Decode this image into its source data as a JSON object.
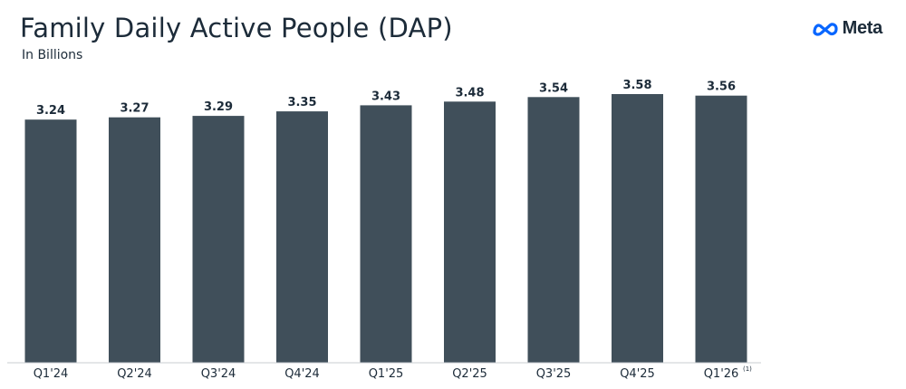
{
  "header": {
    "title": "Family Daily Active People (DAP)",
    "subtitle": "In Billions",
    "brand": "Meta",
    "brand_icon": "meta-infinity-logo-icon",
    "brand_color": "#0866ff"
  },
  "chart_data": {
    "type": "bar",
    "title": "Family Daily Active People (DAP)",
    "subtitle": "In Billions",
    "xlabel": "",
    "ylabel": "",
    "categories": [
      "Q1'24",
      "Q2'24",
      "Q3'24",
      "Q4'24",
      "Q1'25",
      "Q2'25",
      "Q3'25",
      "Q4'25",
      "Q1'26"
    ],
    "values": [
      3.24,
      3.27,
      3.29,
      3.35,
      3.43,
      3.48,
      3.54,
      3.58,
      3.56
    ],
    "value_labels": [
      "3.24",
      "3.27",
      "3.29",
      "3.35",
      "3.43",
      "3.48",
      "3.54",
      "3.58",
      "3.56"
    ],
    "footnotes": [
      null,
      null,
      null,
      null,
      null,
      null,
      null,
      null,
      "(1)"
    ],
    "ylim": [
      0,
      3.58
    ],
    "grid": false,
    "legend": "none",
    "bar_color": "#404f5a"
  }
}
